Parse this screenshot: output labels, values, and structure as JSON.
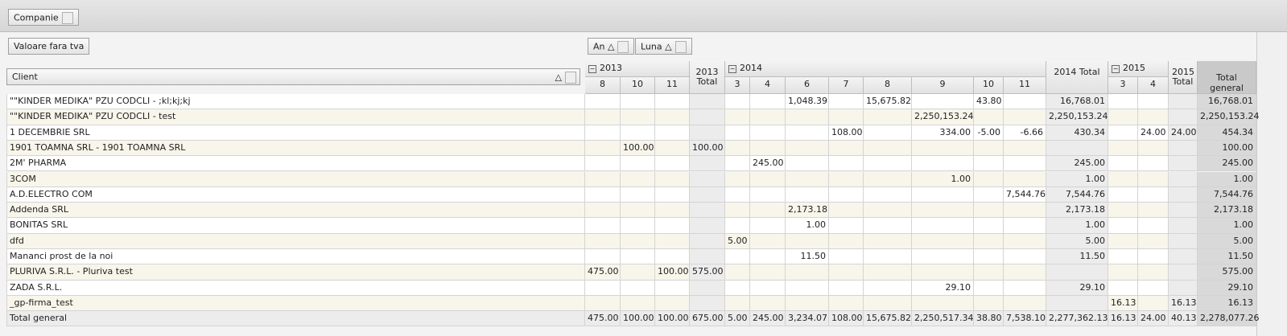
{
  "toolbar": {
    "filter": "Companie",
    "measure": "Valoare fara tva",
    "column_fields": [
      "An",
      "Luna"
    ]
  },
  "pivot": {
    "row_field": "Client",
    "years": [
      {
        "label": "2013",
        "months": [
          "8",
          "10",
          "11"
        ],
        "total": "2013 Total"
      },
      {
        "label": "2014",
        "months": [
          "3",
          "4",
          "6",
          "7",
          "8",
          "9",
          "10",
          "11"
        ],
        "total": "2014 Total"
      },
      {
        "label": "2015",
        "months": [
          "3",
          "4"
        ],
        "total": "2015 Total"
      }
    ],
    "grand_total_label": "Total general",
    "rows": [
      {
        "client": "\"\"KINDER MEDIKA\" PZU CODCLI - ;kl;kj;kj",
        "cells": [
          null,
          null,
          null,
          null,
          null,
          null,
          "1,048.39",
          null,
          "15,675.82",
          null,
          "43.80",
          null,
          "16,768.01",
          null,
          null,
          null,
          "16,768.01"
        ]
      },
      {
        "client": "\"\"KINDER MEDIKA\" PZU CODCLI - test",
        "cells": [
          null,
          null,
          null,
          null,
          null,
          null,
          null,
          null,
          null,
          "2,250,153.24",
          null,
          null,
          "2,250,153.24",
          null,
          null,
          null,
          "2,250,153.24"
        ]
      },
      {
        "client": "1 DECEMBRIE SRL",
        "cells": [
          null,
          null,
          null,
          null,
          null,
          null,
          null,
          "108.00",
          null,
          "334.00",
          "-5.00",
          "-6.66",
          "430.34",
          null,
          "24.00",
          "24.00",
          "454.34"
        ]
      },
      {
        "client": "1901 TOAMNA SRL - 1901 TOAMNA SRL",
        "cells": [
          null,
          "100.00",
          null,
          "100.00",
          null,
          null,
          null,
          null,
          null,
          null,
          null,
          null,
          null,
          null,
          null,
          null,
          "100.00"
        ]
      },
      {
        "client": "2M' PHARMA",
        "cells": [
          null,
          null,
          null,
          null,
          null,
          "245.00",
          null,
          null,
          null,
          null,
          null,
          null,
          "245.00",
          null,
          null,
          null,
          "245.00"
        ]
      },
      {
        "client": "3COM",
        "cells": [
          null,
          null,
          null,
          null,
          null,
          null,
          null,
          null,
          null,
          "1.00",
          null,
          null,
          "1.00",
          null,
          null,
          null,
          "1.00"
        ]
      },
      {
        "client": "A.D.ELECTRO COM",
        "cells": [
          null,
          null,
          null,
          null,
          null,
          null,
          null,
          null,
          null,
          null,
          null,
          "7,544.76",
          "7,544.76",
          null,
          null,
          null,
          "7,544.76"
        ]
      },
      {
        "client": "Addenda SRL",
        "cells": [
          null,
          null,
          null,
          null,
          null,
          null,
          "2,173.18",
          null,
          null,
          null,
          null,
          null,
          "2,173.18",
          null,
          null,
          null,
          "2,173.18"
        ]
      },
      {
        "client": "BONITAS SRL",
        "cells": [
          null,
          null,
          null,
          null,
          null,
          null,
          "1.00",
          null,
          null,
          null,
          null,
          null,
          "1.00",
          null,
          null,
          null,
          "1.00"
        ]
      },
      {
        "client": "dfd",
        "cells": [
          null,
          null,
          null,
          null,
          "5.00",
          null,
          null,
          null,
          null,
          null,
          null,
          null,
          "5.00",
          null,
          null,
          null,
          "5.00"
        ]
      },
      {
        "client": "Mananci prost de la noi",
        "cells": [
          null,
          null,
          null,
          null,
          null,
          null,
          "11.50",
          null,
          null,
          null,
          null,
          null,
          "11.50",
          null,
          null,
          null,
          "11.50"
        ]
      },
      {
        "client": "PLURIVA S.R.L. - Pluriva test",
        "cells": [
          "475.00",
          null,
          "100.00",
          "575.00",
          null,
          null,
          null,
          null,
          null,
          null,
          null,
          null,
          null,
          null,
          null,
          null,
          "575.00"
        ]
      },
      {
        "client": "ZADA S.R.L.",
        "cells": [
          null,
          null,
          null,
          null,
          null,
          null,
          null,
          null,
          null,
          "29.10",
          null,
          null,
          "29.10",
          null,
          null,
          null,
          "29.10"
        ]
      },
      {
        "client": "_gp-firma_test",
        "cells": [
          null,
          null,
          null,
          null,
          null,
          null,
          null,
          null,
          null,
          null,
          null,
          null,
          null,
          "16.13",
          null,
          "16.13",
          "16.13"
        ]
      }
    ],
    "total_row": {
      "label": "Total general",
      "cells": [
        "475.00",
        "100.00",
        "100.00",
        "675.00",
        "5.00",
        "245.00",
        "3,234.07",
        "108.00",
        "15,675.82",
        "2,250,517.34",
        "38.80",
        "7,538.10",
        "2,277,362.13",
        "16.13",
        "24.00",
        "40.13",
        "2,278,077.26"
      ]
    }
  }
}
